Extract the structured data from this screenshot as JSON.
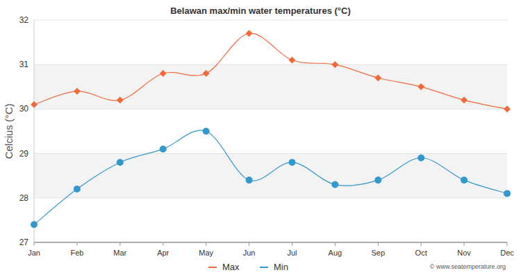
{
  "chart_data": {
    "type": "line",
    "title": "Belawan max/min water temperatures (°C)",
    "y_label": "Celcius (°C)",
    "categories": [
      "Jan",
      "Feb",
      "Mar",
      "Apr",
      "May",
      "Jun",
      "Jul",
      "Aug",
      "Sep",
      "Oct",
      "Nov",
      "Dec"
    ],
    "series": [
      {
        "name": "Max",
        "color": "#f26a3c",
        "marker": "diamond",
        "values": [
          30.1,
          30.4,
          30.2,
          30.8,
          30.8,
          31.7,
          31.1,
          31.0,
          30.7,
          30.5,
          30.2,
          30.0
        ]
      },
      {
        "name": "Min",
        "color": "#3399cc",
        "marker": "circle",
        "values": [
          27.4,
          28.2,
          28.8,
          29.1,
          29.5,
          28.4,
          28.8,
          28.3,
          28.4,
          28.9,
          28.4,
          28.1
        ]
      }
    ],
    "ylim": [
      27,
      32
    ],
    "yticks": [
      27,
      28,
      29,
      30,
      31,
      32
    ],
    "grid": true,
    "legend": "bottom",
    "annotations": [
      "© www.seatemperature.org"
    ]
  }
}
